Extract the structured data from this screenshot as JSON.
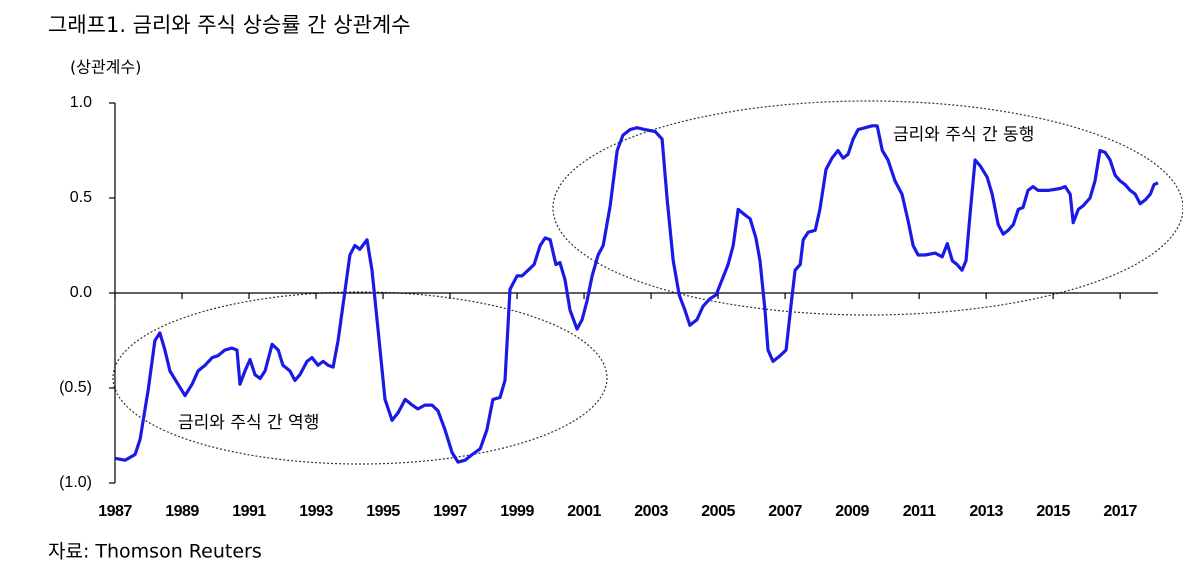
{
  "chart_data": {
    "type": "line",
    "title": "그래프1. 금리와 주식 상승률 간 상관계수",
    "y_label": "(상관계수)",
    "source": "자료: Thomson Reuters",
    "annotations": [
      "금리와 주식 간 동행",
      "금리와 주식 간 역행"
    ],
    "xlim": [
      1987,
      2018.13
    ],
    "xticks": [
      1987,
      1989,
      1991,
      1993,
      1995,
      1997,
      1999,
      2001,
      2003,
      2005,
      2007,
      2009,
      2011,
      2013,
      2015,
      2017
    ],
    "ylim": [
      -1,
      1
    ],
    "yticks": [
      {
        "value": 1,
        "label": "1.0"
      },
      0.5,
      {
        "value": 0,
        "label": "0.0"
      },
      {
        "value": -0.5,
        "label": "(0.5)"
      },
      {
        "value": -1,
        "label": "(1.0)"
      }
    ],
    "x": [
      1987.0,
      1987.3,
      1987.6,
      1987.75,
      1987.99,
      1988.19,
      1988.34,
      1988.49,
      1988.64,
      1988.88,
      1989.09,
      1989.3,
      1989.48,
      1989.69,
      1989.9,
      1990.07,
      1990.28,
      1990.49,
      1990.64,
      1990.73,
      1990.88,
      1991.03,
      1991.18,
      1991.33,
      1991.48,
      1991.69,
      1991.87,
      1992.01,
      1992.22,
      1992.37,
      1992.52,
      1992.73,
      1992.88,
      1993.06,
      1993.21,
      1993.36,
      1993.51,
      1993.66,
      1993.87,
      1994.01,
      1994.16,
      1994.31,
      1994.52,
      1994.67,
      1994.85,
      1995.06,
      1995.27,
      1995.45,
      1995.66,
      1995.87,
      1996.04,
      1996.25,
      1996.46,
      1996.64,
      1996.85,
      1997.06,
      1997.24,
      1997.45,
      1997.66,
      1997.9,
      1998.1,
      1998.28,
      1998.49,
      1998.64,
      1998.79,
      1999.0,
      1999.15,
      1999.33,
      1999.51,
      1999.69,
      1999.84,
      1999.99,
      2000.16,
      2000.28,
      2000.43,
      2000.58,
      2000.79,
      2000.94,
      2001.09,
      2001.24,
      2001.42,
      2001.57,
      2001.78,
      2001.99,
      2002.16,
      2002.37,
      2002.58,
      2002.82,
      2003.12,
      2003.33,
      2003.48,
      2003.66,
      2003.84,
      2004.01,
      2004.16,
      2004.37,
      2004.55,
      2004.76,
      2004.94,
      2005.12,
      2005.3,
      2005.45,
      2005.6,
      2005.81,
      2005.96,
      2006.13,
      2006.25,
      2006.4,
      2006.49,
      2006.64,
      2006.85,
      2007.03,
      2007.18,
      2007.3,
      2007.45,
      2007.54,
      2007.69,
      2007.9,
      2008.04,
      2008.22,
      2008.4,
      2008.58,
      2008.73,
      2008.88,
      2009.03,
      2009.18,
      2009.39,
      2009.6,
      2009.75,
      2009.9,
      2010.07,
      2010.28,
      2010.49,
      2010.67,
      2010.82,
      2010.97,
      2011.18,
      2011.48,
      2011.69,
      2011.84,
      2011.99,
      2012.13,
      2012.28,
      2012.4,
      2012.52,
      2012.67,
      2012.82,
      2013.03,
      2013.18,
      2013.36,
      2013.51,
      2013.66,
      2013.81,
      2013.96,
      2014.1,
      2014.25,
      2014.4,
      2014.55,
      2014.85,
      2015.21,
      2015.36,
      2015.51,
      2015.6,
      2015.75,
      2015.9,
      2016.1,
      2016.25,
      2016.4,
      2016.55,
      2016.7,
      2016.85,
      2017.0,
      2017.15,
      2017.3,
      2017.45,
      2017.6,
      2017.75,
      2017.9,
      2018.01,
      2018.13
    ],
    "series": [
      {
        "name": "상관계수",
        "color": "#1a1ae6",
        "values": [
          -0.87,
          -0.88,
          -0.85,
          -0.77,
          -0.51,
          -0.25,
          -0.21,
          -0.3,
          -0.41,
          -0.48,
          -0.54,
          -0.48,
          -0.41,
          -0.38,
          -0.34,
          -0.33,
          -0.3,
          -0.29,
          -0.3,
          -0.48,
          -0.41,
          -0.35,
          -0.43,
          -0.45,
          -0.41,
          -0.27,
          -0.3,
          -0.38,
          -0.41,
          -0.46,
          -0.43,
          -0.36,
          -0.34,
          -0.38,
          -0.36,
          -0.38,
          -0.39,
          -0.25,
          0.02,
          0.2,
          0.25,
          0.23,
          0.28,
          0.12,
          -0.19,
          -0.56,
          -0.67,
          -0.63,
          -0.56,
          -0.59,
          -0.61,
          -0.59,
          -0.59,
          -0.62,
          -0.72,
          -0.84,
          -0.89,
          -0.88,
          -0.85,
          -0.82,
          -0.72,
          -0.56,
          -0.55,
          -0.46,
          0.02,
          0.09,
          0.09,
          0.12,
          0.15,
          0.25,
          0.29,
          0.28,
          0.15,
          0.16,
          0.07,
          -0.09,
          -0.19,
          -0.14,
          -0.04,
          0.09,
          0.2,
          0.25,
          0.46,
          0.75,
          0.83,
          0.86,
          0.87,
          0.86,
          0.85,
          0.81,
          0.49,
          0.17,
          -0.01,
          -0.09,
          -0.17,
          -0.14,
          -0.07,
          -0.03,
          -0.01,
          0.07,
          0.15,
          0.25,
          0.44,
          0.41,
          0.39,
          0.29,
          0.17,
          -0.09,
          -0.3,
          -0.36,
          -0.33,
          -0.3,
          -0.06,
          0.12,
          0.15,
          0.28,
          0.32,
          0.33,
          0.44,
          0.65,
          0.71,
          0.75,
          0.71,
          0.73,
          0.81,
          0.86,
          0.87,
          0.88,
          0.88,
          0.75,
          0.7,
          0.59,
          0.52,
          0.38,
          0.25,
          0.2,
          0.2,
          0.21,
          0.19,
          0.26,
          0.17,
          0.15,
          0.12,
          0.17,
          0.41,
          0.7,
          0.67,
          0.61,
          0.52,
          0.36,
          0.31,
          0.33,
          0.36,
          0.44,
          0.45,
          0.54,
          0.56,
          0.54,
          0.54,
          0.55,
          0.56,
          0.52,
          0.37,
          0.44,
          0.46,
          0.5,
          0.59,
          0.75,
          0.74,
          0.7,
          0.62,
          0.59,
          0.57,
          0.54,
          0.52,
          0.47,
          0.49,
          0.52,
          0.57,
          0.58
        ]
      }
    ]
  }
}
